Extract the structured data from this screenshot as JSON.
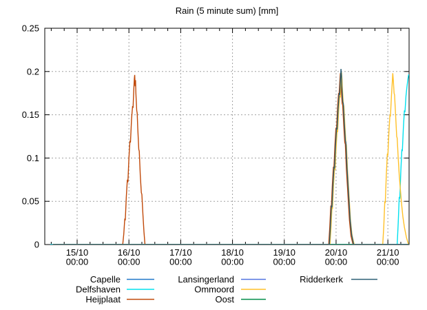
{
  "chart_data": {
    "type": "line",
    "title": "Rain (5 minute sum) [mm]",
    "xlabel": "",
    "ylabel": "",
    "grid": true,
    "legend_position": "below-plot",
    "ylim": [
      0,
      0.25
    ],
    "xlim_days": [
      -0.625,
      6.41
    ],
    "x_epoch_note": "days relative to 15/10 00:00",
    "x_minor_step_days": 0.25,
    "y_ticks": [
      {
        "v": 0,
        "label": "0"
      },
      {
        "v": 0.05,
        "label": "0.05"
      },
      {
        "v": 0.1,
        "label": "0.1"
      },
      {
        "v": 0.15,
        "label": "0.15"
      },
      {
        "v": 0.2,
        "label": "0.2"
      },
      {
        "v": 0.25,
        "label": "0.25"
      }
    ],
    "x_ticks": [
      {
        "day": 0,
        "label": [
          "15/10",
          "00:00"
        ]
      },
      {
        "day": 1,
        "label": [
          "16/10",
          "00:00"
        ]
      },
      {
        "day": 2,
        "label": [
          "17/10",
          "00:00"
        ]
      },
      {
        "day": 3,
        "label": [
          "18/10",
          "00:00"
        ]
      },
      {
        "day": 4,
        "label": [
          "19/10",
          "00:00"
        ]
      },
      {
        "day": 5,
        "label": [
          "20/10",
          "00:00"
        ]
      },
      {
        "day": 6,
        "label": [
          "21/10",
          "00:00"
        ]
      }
    ],
    "series": [
      {
        "name": "Capelle",
        "color": "#1E76C8",
        "points": [
          [
            -0.52,
            0
          ],
          [
            6.41,
            0
          ]
        ]
      },
      {
        "name": "Delfshaven",
        "color": "#00E0EE",
        "points": [
          [
            -0.52,
            0
          ],
          [
            6.18,
            0
          ],
          [
            6.2,
            0.025
          ],
          [
            6.22,
            0.055
          ],
          [
            6.23,
            0.053
          ],
          [
            6.25,
            0.085
          ],
          [
            6.27,
            0.11
          ],
          [
            6.28,
            0.108
          ],
          [
            6.3,
            0.135
          ],
          [
            6.32,
            0.155
          ],
          [
            6.33,
            0.153
          ],
          [
            6.35,
            0.172
          ],
          [
            6.37,
            0.183
          ],
          [
            6.385,
            0.19
          ],
          [
            6.4,
            0.196
          ],
          [
            6.45,
            0.197
          ]
        ]
      },
      {
        "name": "Heijplaat",
        "color": "#C04808",
        "points": [
          [
            -0.47,
            0
          ],
          [
            0.88,
            0
          ],
          [
            0.9,
            0.012
          ],
          [
            0.92,
            0.03
          ],
          [
            0.93,
            0.028
          ],
          [
            0.95,
            0.055
          ],
          [
            0.97,
            0.075
          ],
          [
            0.98,
            0.072
          ],
          [
            1.0,
            0.1
          ],
          [
            1.02,
            0.12
          ],
          [
            1.03,
            0.118
          ],
          [
            1.05,
            0.145
          ],
          [
            1.07,
            0.16
          ],
          [
            1.08,
            0.158
          ],
          [
            1.095,
            0.18
          ],
          [
            1.105,
            0.192
          ],
          [
            1.112,
            0.196
          ],
          [
            1.12,
            0.183
          ],
          [
            1.128,
            0.19
          ],
          [
            1.135,
            0.175
          ],
          [
            1.15,
            0.155
          ],
          [
            1.16,
            0.152
          ],
          [
            1.17,
            0.135
          ],
          [
            1.19,
            0.11
          ],
          [
            1.2,
            0.108
          ],
          [
            1.22,
            0.08
          ],
          [
            1.24,
            0.06
          ],
          [
            1.25,
            0.058
          ],
          [
            1.27,
            0.035
          ],
          [
            1.29,
            0.015
          ],
          [
            1.31,
            0
          ],
          [
            4.858,
            0
          ],
          [
            4.878,
            0.02
          ],
          [
            4.898,
            0.045
          ],
          [
            4.908,
            0.043
          ],
          [
            4.928,
            0.07
          ],
          [
            4.948,
            0.09
          ],
          [
            4.958,
            0.088
          ],
          [
            4.978,
            0.115
          ],
          [
            4.998,
            0.135
          ],
          [
            5.008,
            0.133
          ],
          [
            5.028,
            0.158
          ],
          [
            5.048,
            0.175
          ],
          [
            5.058,
            0.173
          ],
          [
            5.073,
            0.19
          ],
          [
            5.083,
            0.198
          ],
          [
            5.093,
            0.192
          ],
          [
            5.098,
            0.183
          ],
          [
            5.118,
            0.163
          ],
          [
            5.128,
            0.161
          ],
          [
            5.148,
            0.138
          ],
          [
            5.168,
            0.118
          ],
          [
            5.178,
            0.116
          ],
          [
            5.198,
            0.088
          ],
          [
            5.218,
            0.068
          ],
          [
            5.238,
            0.048
          ],
          [
            5.258,
            0.028
          ],
          [
            5.288,
            0.01
          ],
          [
            5.328,
            0
          ],
          [
            6.41,
            0
          ]
        ]
      },
      {
        "name": "Lansingerland",
        "color": "#5072E0",
        "points": [
          [
            -0.47,
            0
          ],
          [
            6.41,
            0
          ]
        ]
      },
      {
        "name": "Ommoord",
        "color": "#FFC028",
        "points": [
          [
            -0.47,
            0
          ],
          [
            4.88,
            0
          ],
          [
            4.9,
            0.018
          ],
          [
            4.92,
            0.043
          ],
          [
            4.93,
            0.041
          ],
          [
            4.95,
            0.068
          ],
          [
            4.97,
            0.088
          ],
          [
            4.98,
            0.086
          ],
          [
            5.0,
            0.112
          ],
          [
            5.02,
            0.132
          ],
          [
            5.03,
            0.13
          ],
          [
            5.05,
            0.155
          ],
          [
            5.07,
            0.172
          ],
          [
            5.08,
            0.17
          ],
          [
            5.095,
            0.189
          ],
          [
            5.105,
            0.199
          ],
          [
            5.115,
            0.191
          ],
          [
            5.12,
            0.182
          ],
          [
            5.14,
            0.162
          ],
          [
            5.15,
            0.16
          ],
          [
            5.17,
            0.137
          ],
          [
            5.19,
            0.117
          ],
          [
            5.2,
            0.115
          ],
          [
            5.22,
            0.087
          ],
          [
            5.24,
            0.067
          ],
          [
            5.26,
            0.047
          ],
          [
            5.28,
            0.027
          ],
          [
            5.31,
            0.01
          ],
          [
            5.35,
            0
          ],
          [
            5.9,
            0
          ],
          [
            5.92,
            0.02
          ],
          [
            5.94,
            0.05
          ],
          [
            5.95,
            0.048
          ],
          [
            5.97,
            0.08
          ],
          [
            5.99,
            0.105
          ],
          [
            6.0,
            0.103
          ],
          [
            6.02,
            0.13
          ],
          [
            6.04,
            0.15
          ],
          [
            6.05,
            0.148
          ],
          [
            6.07,
            0.172
          ],
          [
            6.085,
            0.188
          ],
          [
            6.095,
            0.198
          ],
          [
            6.105,
            0.19
          ],
          [
            6.12,
            0.175
          ],
          [
            6.13,
            0.173
          ],
          [
            6.15,
            0.15
          ],
          [
            6.17,
            0.125
          ],
          [
            6.18,
            0.123
          ],
          [
            6.2,
            0.1
          ],
          [
            6.22,
            0.08
          ],
          [
            6.24,
            0.065
          ],
          [
            6.26,
            0.05
          ],
          [
            6.29,
            0.032
          ],
          [
            6.32,
            0.02
          ],
          [
            6.36,
            0.008
          ],
          [
            6.4,
            0
          ],
          [
            6.41,
            0
          ]
        ]
      },
      {
        "name": "Oost",
        "color": "#008C48",
        "points": [
          [
            -0.47,
            0
          ],
          [
            6.41,
            0
          ]
        ]
      },
      {
        "name": "Ridderkerk",
        "color": "#2A5E74",
        "points": [
          [
            -0.47,
            0
          ],
          [
            4.87,
            0
          ],
          [
            4.89,
            0.02
          ],
          [
            4.91,
            0.045
          ],
          [
            4.92,
            0.043
          ],
          [
            4.94,
            0.07
          ],
          [
            4.96,
            0.09
          ],
          [
            4.97,
            0.088
          ],
          [
            4.99,
            0.115
          ],
          [
            5.01,
            0.135
          ],
          [
            5.02,
            0.133
          ],
          [
            5.04,
            0.158
          ],
          [
            5.06,
            0.175
          ],
          [
            5.07,
            0.173
          ],
          [
            5.085,
            0.192
          ],
          [
            5.095,
            0.203
          ],
          [
            5.105,
            0.195
          ],
          [
            5.11,
            0.185
          ],
          [
            5.13,
            0.165
          ],
          [
            5.14,
            0.163
          ],
          [
            5.16,
            0.14
          ],
          [
            5.18,
            0.12
          ],
          [
            5.19,
            0.118
          ],
          [
            5.21,
            0.09
          ],
          [
            5.23,
            0.07
          ],
          [
            5.25,
            0.05
          ],
          [
            5.27,
            0.03
          ],
          [
            5.3,
            0.012
          ],
          [
            5.34,
            0
          ],
          [
            6.41,
            0
          ]
        ]
      }
    ],
    "legend": {
      "columns": [
        [
          "Capelle",
          "Delfshaven",
          "Heijplaat"
        ],
        [
          "Lansingerland",
          "Ommoord",
          "Oost"
        ],
        [
          "Ridderkerk"
        ]
      ]
    },
    "peak_summary": [
      {
        "series": "Heijplaat",
        "when": "16/10 ~03:00",
        "peak_mm": 0.196
      },
      {
        "series": "Heijplaat",
        "when": "20/10 ~02:00",
        "peak_mm": 0.198
      },
      {
        "series": "Ommoord",
        "when": "20/10 ~02:30",
        "peak_mm": 0.199
      },
      {
        "series": "Ridderkerk",
        "when": "20/10 ~02:20",
        "peak_mm": 0.203
      },
      {
        "series": "Ommoord",
        "when": "21/10 ~02:20",
        "peak_mm": 0.198
      },
      {
        "series": "Delfshaven",
        "when": "21/10 ~09:30 (clipped at right edge)",
        "peak_mm": 0.196
      }
    ],
    "colors": {
      "background": "#ffffff",
      "border": "#000000",
      "grid": "#a0a0a0",
      "text": "#000000"
    }
  }
}
